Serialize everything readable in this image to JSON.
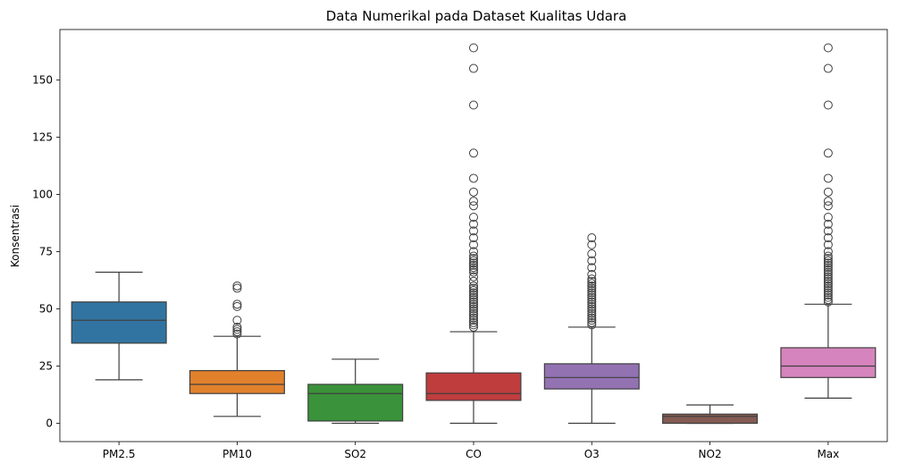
{
  "chart_data": {
    "type": "box",
    "title": "Data Numerikal pada Dataset Kualitas Udara",
    "xlabel": "",
    "ylabel": "Konsentrasi",
    "ylim": [
      -8,
      172
    ],
    "yticks": [
      0,
      25,
      50,
      75,
      100,
      125,
      150
    ],
    "grid": false,
    "categories": [
      "PM2.5",
      "PM10",
      "SO2",
      "CO",
      "O3",
      "NO2",
      "Max"
    ],
    "boxes": [
      {
        "category": "PM2.5",
        "color": "#3274a1",
        "whislo": 19,
        "q1": 35,
        "med": 45,
        "q3": 53,
        "whishi": 66,
        "fliers": []
      },
      {
        "category": "PM10",
        "color": "#e1812c",
        "whislo": 3,
        "q1": 13,
        "med": 17,
        "q3": 23,
        "whishi": 38,
        "fliers": [
          39,
          40,
          41,
          42,
          45,
          51,
          52,
          59,
          60
        ]
      },
      {
        "category": "SO2",
        "color": "#3a923a",
        "whislo": 0,
        "q1": 1,
        "med": 13,
        "q3": 17,
        "whishi": 28,
        "fliers": []
      },
      {
        "category": "CO",
        "color": "#c03d3e",
        "whislo": 0,
        "q1": 10,
        "med": 13,
        "q3": 22,
        "whishi": 40,
        "fliers": [
          42,
          43,
          44,
          45,
          46,
          47,
          48,
          49,
          50,
          51,
          52,
          53,
          54,
          55,
          56,
          57,
          58,
          59,
          60,
          62,
          64,
          66,
          67,
          68,
          69,
          70,
          71,
          72,
          73,
          75,
          78,
          81,
          84,
          87,
          90,
          95,
          97,
          101,
          107,
          118,
          139,
          155,
          164
        ]
      },
      {
        "category": "O3",
        "color": "#9372b2",
        "whislo": 0,
        "q1": 15,
        "med": 20,
        "q3": 26,
        "whishi": 42,
        "fliers": [
          43,
          44,
          45,
          46,
          47,
          48,
          49,
          50,
          51,
          52,
          53,
          54,
          55,
          56,
          57,
          58,
          59,
          60,
          61,
          62,
          63,
          65,
          68,
          71,
          74,
          78,
          81
        ]
      },
      {
        "category": "NO2",
        "color": "#845b53",
        "whislo": 0,
        "q1": 0,
        "med": 3,
        "q3": 4,
        "whishi": 8,
        "fliers": []
      },
      {
        "category": "Max",
        "color": "#d684bd",
        "whislo": 11,
        "q1": 20,
        "med": 25,
        "q3": 33,
        "whishi": 52,
        "fliers": [
          53,
          54,
          55,
          56,
          57,
          58,
          59,
          60,
          61,
          62,
          63,
          64,
          65,
          66,
          67,
          68,
          69,
          70,
          71,
          72,
          73,
          75,
          78,
          81,
          84,
          87,
          90,
          95,
          97,
          101,
          107,
          118,
          139,
          155,
          164
        ]
      }
    ]
  }
}
